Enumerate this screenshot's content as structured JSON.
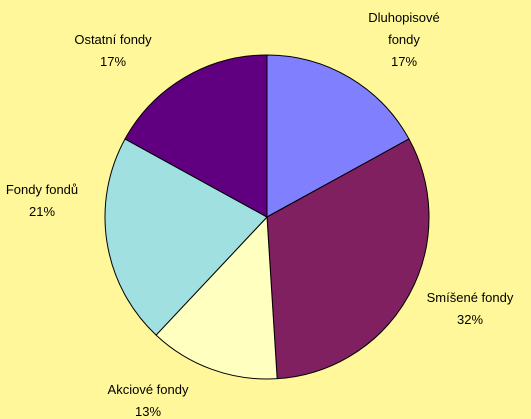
{
  "chart_data": {
    "type": "pie",
    "categories": [
      "Dluhopisové fondy",
      "Smíšené fondy",
      "Akciové fondy",
      "Fondy fondů",
      "Ostatní fondy"
    ],
    "values": [
      17,
      32,
      13,
      21,
      17
    ],
    "value_labels": [
      "17%",
      "32%",
      "13%",
      "21%",
      "17%"
    ],
    "colors": [
      "#8080ff",
      "#802060",
      "#ffffc0",
      "#a0e0e0",
      "#600080"
    ]
  }
}
